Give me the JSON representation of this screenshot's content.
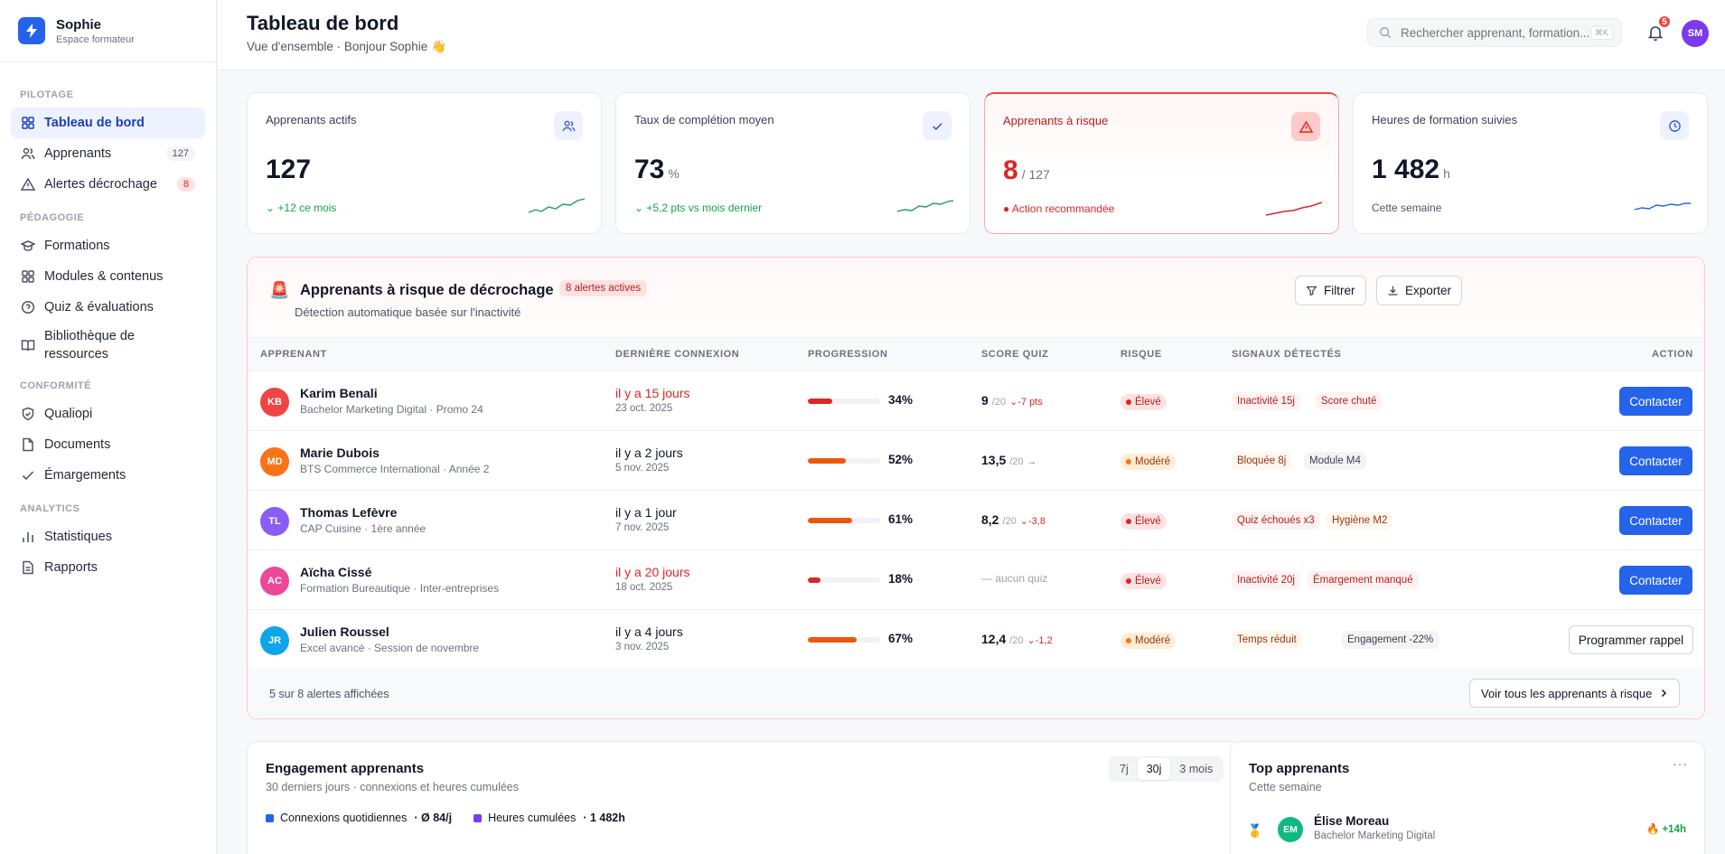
{
  "brand": {
    "name": "Sophie",
    "subtitle": "Espace formateur"
  },
  "nav": {
    "sections": [
      {
        "title": "PILOTAGE",
        "items": [
          {
            "label": "Tableau de bord",
            "icon": "grid-icon",
            "active": true
          },
          {
            "label": "Apprenants",
            "icon": "users-icon",
            "badge": "127"
          },
          {
            "label": "Alertes décrochage",
            "icon": "warning-icon",
            "badge": "8"
          }
        ]
      },
      {
        "title": "PÉDAGOGIE",
        "items": [
          {
            "label": "Formations",
            "icon": "graduation-cap-icon"
          },
          {
            "label": "Modules & contenus",
            "icon": "grid-icon"
          },
          {
            "label": "Quiz & évaluations",
            "icon": "help-circle-icon"
          },
          {
            "label": "Bibliothèque de ressources",
            "icon": "book-icon"
          }
        ]
      },
      {
        "title": "CONFORMITÉ",
        "items": [
          {
            "label": "Qualiopi",
            "icon": "shield-check-icon"
          },
          {
            "label": "Documents",
            "icon": "file-icon"
          },
          {
            "label": "Émargements",
            "icon": "check-icon"
          }
        ]
      },
      {
        "title": "ANALYTICS",
        "items": [
          {
            "label": "Statistiques",
            "icon": "bar-chart-icon"
          },
          {
            "label": "Rapports",
            "icon": "file-text-icon"
          }
        ]
      }
    ]
  },
  "header": {
    "title": "Tableau de bord",
    "subtitle": "Vue d'ensemble · Bonjour Sophie 👋",
    "search_placeholder": "Rechercher apprenant, formation...",
    "search_shortcut": "⌘K",
    "notifications": "5",
    "user_initials": "SM"
  },
  "kpis": [
    {
      "label": "Apprenants actifs",
      "value": "127",
      "unit": "",
      "foot": "+12 ce mois",
      "foot_color": "#16a34a",
      "icon": "users-icon"
    },
    {
      "label": "Taux de complétion moyen",
      "value": "73",
      "unit": "%",
      "foot": "+5,2 pts vs mois dernier",
      "foot_color": "#16a34a",
      "icon": "check-icon"
    },
    {
      "label": "Apprenants à risque",
      "value": "8",
      "unit": "/ 127",
      "foot": "Action recommandée",
      "foot_color": "#dc2626",
      "icon": "warning-icon"
    },
    {
      "label": "Heures de formation suivies",
      "value": "1 482",
      "unit": "h",
      "foot": "Cette semaine",
      "foot_color": "#4b5563",
      "icon": "clock-icon"
    }
  ],
  "risk": {
    "title": "Apprenants à risque de décrochage",
    "badge": "8 alertes actives",
    "subtitle": "Détection automatique basée sur l'inactivité",
    "filter_label": "Filtrer",
    "export_label": "Exporter",
    "columns": [
      "APPRENANT",
      "DERNIÈRE CONNEXION",
      "PROGRESSION",
      "SCORE QUIZ",
      "RISQUE",
      "SIGNAUX DÉTECTÉS",
      "ACTION"
    ],
    "rows": [
      {
        "initials": "KB",
        "color": "#ef4444",
        "name": "Karim Benali",
        "program": "Bachelor Marketing Digital · Promo 24",
        "last": "il y a 15 jours",
        "last_red": true,
        "date": "23 oct. 2025",
        "progress": 34,
        "progress_label": "34%",
        "bar_color": "#dc2626",
        "score": "9",
        "score_den": "/20",
        "score_delta": "⌄-7 pts",
        "delta_neutral": false,
        "risk": "Élevé",
        "risk_level": "hi",
        "signals": [
          {
            "t": "Inactivité 15j",
            "c": "red"
          },
          {
            "t": "Score chuté",
            "c": "red"
          }
        ],
        "action": "Contacter"
      },
      {
        "initials": "MD",
        "color": "#f97316",
        "name": "Marie Dubois",
        "program": "BTS Commerce International · Année 2",
        "last": "il y a 2 jours",
        "last_red": false,
        "date": "5 nov. 2025",
        "progress": 52,
        "progress_label": "52%",
        "bar_color": "#ea580c",
        "score": "13,5",
        "score_den": "/20",
        "score_delta": "→",
        "delta_neutral": true,
        "risk": "Modéré",
        "risk_level": "md",
        "signals": [
          {
            "t": "Bloquée 8j",
            "c": "orange"
          },
          {
            "t": "Module M4",
            "c": "gray"
          }
        ],
        "action": "Contacter"
      },
      {
        "initials": "TL",
        "color": "#8b5cf6",
        "name": "Thomas Lefèvre",
        "program": "CAP Cuisine · 1ère année",
        "last": "il y a 1 jour",
        "last_red": false,
        "date": "7 nov. 2025",
        "progress": 61,
        "progress_label": "61%",
        "bar_color": "#ea580c",
        "score": "8,2",
        "score_den": "/20",
        "score_delta": "⌄-3,8",
        "delta_neutral": false,
        "risk": "Élevé",
        "risk_level": "hi",
        "signals": [
          {
            "t": "Quiz échoués x3",
            "c": "red"
          },
          {
            "t": "Hygiène M2",
            "c": "orange"
          }
        ],
        "action": "Contacter"
      },
      {
        "initials": "AC",
        "color": "#ec4899",
        "name": "Aïcha Cissé",
        "program": "Formation Bureautique · Inter-entreprises",
        "last": "il y a 20 jours",
        "last_red": true,
        "date": "18 oct. 2025",
        "progress": 18,
        "progress_label": "18%",
        "bar_color": "#dc2626",
        "score": "",
        "score_none": "— aucun quiz",
        "risk": "Élevé",
        "risk_level": "hi",
        "signals": [
          {
            "t": "Inactivité 20j",
            "c": "red"
          },
          {
            "t": "Émargement manqué",
            "c": "red"
          }
        ],
        "action": "Contacter"
      },
      {
        "initials": "JR",
        "color": "#0ea5e9",
        "name": "Julien Roussel",
        "program": "Excel avancé · Session de novembre",
        "last": "il y a 4 jours",
        "last_red": false,
        "date": "3 nov. 2025",
        "progress": 67,
        "progress_label": "67%",
        "bar_color": "#ea580c",
        "score": "12,4",
        "score_den": "/20",
        "score_delta": "⌄-1,2",
        "delta_neutral": false,
        "risk": "Modéré",
        "risk_level": "md",
        "signals": [
          {
            "t": "Temps réduit",
            "c": "orange"
          },
          {
            "t": "Engagement -22%",
            "c": "gray"
          }
        ],
        "action": "Programmer rappel"
      }
    ],
    "footer_count": "5 sur 8 alertes affichées",
    "view_all": "Voir tous les apprenants à risque"
  },
  "engagement": {
    "title": "Engagement apprenants",
    "subtitle": "30 derniers jours · connexions et heures cumulées",
    "ranges": [
      "7j",
      "30j",
      "3 mois"
    ],
    "active_range": "30j",
    "legend": [
      {
        "label": "Connexions quotidiennes",
        "value": "· Ø 84/j",
        "color": "#2563eb"
      },
      {
        "label": "Heures cumulées",
        "value": "· 1 482h",
        "color": "#7c3aed"
      }
    ]
  },
  "top": {
    "title": "Top apprenants",
    "subtitle": "Cette semaine",
    "more": "···",
    "first": {
      "medal": "🥇",
      "initials": "EM",
      "name": "Élise Moreau",
      "program": "Bachelor Marketing Digital",
      "delta": "🔥 +14h"
    }
  }
}
